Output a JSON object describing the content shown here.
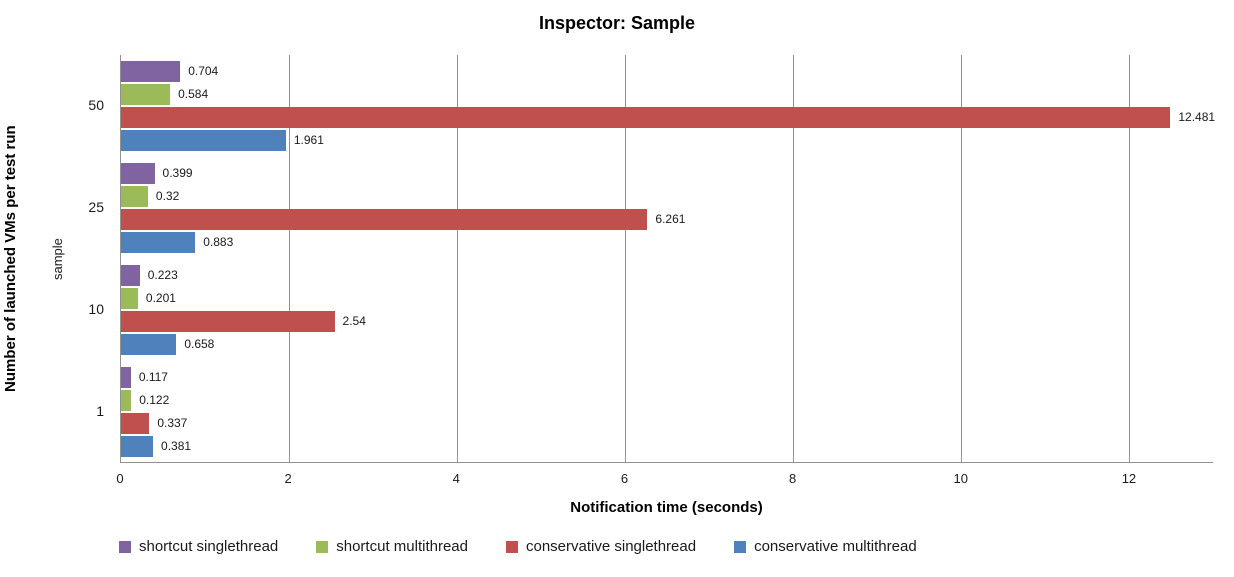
{
  "title": "Inspector: Sample",
  "chart_data": {
    "type": "bar",
    "orientation": "horizontal",
    "title": "Inspector: Sample",
    "xlabel": "Notification time (seconds)",
    "ylabel": "Number of launched VMs per test run",
    "ylabel_secondary": "sample",
    "categories": [
      "50",
      "25",
      "10",
      "1"
    ],
    "series": [
      {
        "name": "shortcut singlethread",
        "color": "#8064A2",
        "values": [
          0.704,
          0.399,
          0.223,
          0.117
        ],
        "labels": [
          "0.704",
          "0.399",
          "0.223",
          "0.117"
        ]
      },
      {
        "name": "shortcut multithread",
        "color": "#9BBB59",
        "values": [
          0.584,
          0.32,
          0.201,
          0.122
        ],
        "labels": [
          "0.584",
          "0.32",
          "0.201",
          "0.122"
        ]
      },
      {
        "name": "conservative singlethread",
        "color": "#C0504D",
        "values": [
          12.481,
          6.261,
          2.54,
          0.337
        ],
        "labels": [
          "12.481",
          "6.261",
          "2.54",
          "0.337"
        ]
      },
      {
        "name": "conservative multithread",
        "color": "#4F81BD",
        "values": [
          1.961,
          0.883,
          0.658,
          0.381
        ],
        "labels": [
          "1.961",
          "0.883",
          "0.658",
          "0.381"
        ]
      }
    ],
    "xlim": [
      0,
      13
    ],
    "x_ticks": [
      0,
      2,
      4,
      6,
      8,
      10,
      12
    ],
    "grid": true,
    "gridline_color": "#919191",
    "legend_position": "bottom",
    "background_color": "#ffffff",
    "text_color": "#1a1a1a"
  }
}
